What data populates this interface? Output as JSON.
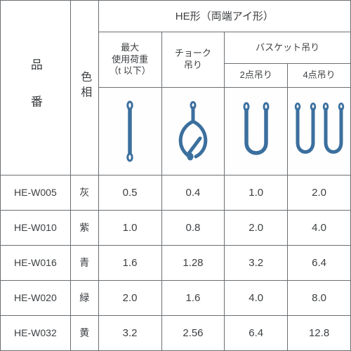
{
  "colors": {
    "stroke": "#6a6f73",
    "text": "#3c3f42",
    "icon": "#3b6f9e",
    "bg": "#ffffff"
  },
  "header": {
    "col_product": "品",
    "col_product2": "番",
    "col_color": "色相",
    "group_main": "HE形（両端アイ形）",
    "sub_maxload_l1": "最大",
    "sub_maxload_l2": "使用荷重",
    "sub_maxload_l3": "（t 以下）",
    "sub_choke_l1": "チョーク",
    "sub_choke_l2": "吊り",
    "sub_basket": "バスケット吊り",
    "sub_basket_2pt": "2点吊り",
    "sub_basket_4pt": "4点吊り"
  },
  "rows": [
    {
      "code": "HE-W005",
      "color": "灰",
      "v1": "0.5",
      "v2": "0.4",
      "v3": "1.0",
      "v4": "2.0"
    },
    {
      "code": "HE-W010",
      "color": "紫",
      "v1": "1.0",
      "v2": "0.8",
      "v3": "2.0",
      "v4": "4.0"
    },
    {
      "code": "HE-W016",
      "color": "青",
      "v1": "1.6",
      "v2": "1.28",
      "v3": "3.2",
      "v4": "6.4"
    },
    {
      "code": "HE-W020",
      "color": "緑",
      "v1": "2.0",
      "v2": "1.6",
      "v3": "4.0",
      "v4": "8.0"
    },
    {
      "code": "HE-W032",
      "color": "黄",
      "v1": "3.2",
      "v2": "2.56",
      "v3": "6.4",
      "v4": "12.8"
    }
  ],
  "colwidths_pct": [
    20,
    8,
    18,
    18,
    18,
    18
  ]
}
